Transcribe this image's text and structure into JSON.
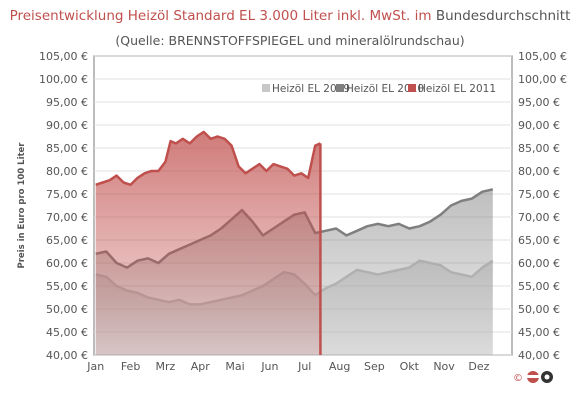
{
  "title_part1": "Preisentwicklung Heizöl Standard EL 3.000 Liter inkl. MwSt. im",
  "title_part2": "Bundesdurchschnitt",
  "subtitle": "(Quelle: BRENNSTOFFSPIEGEL  und mineralölrundschau)",
  "logo_copyright": "©",
  "colors": {
    "s2009": "#c8c8c8",
    "s2010": "#7f7f7f",
    "s2011": "#c0504d",
    "plot_bg": "#a6a6a6"
  },
  "chart_data": {
    "type": "area",
    "ylabel": "Preis in Euro pro 100 Liter",
    "xlabel": "",
    "ylim": [
      40,
      105
    ],
    "yticks": [
      "40,00 €",
      "45,00 €",
      "50,00 €",
      "55,00 €",
      "60,00 €",
      "65,00 €",
      "70,00 €",
      "75,00 €",
      "80,00 €",
      "85,00 €",
      "90,00 €",
      "95,00 €",
      "100,00 €",
      "105,00 €"
    ],
    "categories": [
      "Jan",
      "Feb",
      "Mrz",
      "Apr",
      "Mai",
      "Jun",
      "Jul",
      "Aug",
      "Sep",
      "Okt",
      "Nov",
      "Dez"
    ],
    "grid": true,
    "legend_position": "top-right",
    "series": [
      {
        "name": "Heizöl EL 2009",
        "x": [
          0,
          0.3,
          0.6,
          0.9,
          1.2,
          1.5,
          1.8,
          2.1,
          2.4,
          2.7,
          3.0,
          3.3,
          3.6,
          3.9,
          4.2,
          4.5,
          4.8,
          5.1,
          5.4,
          5.7,
          6.0,
          6.3,
          6.6,
          6.9,
          7.2,
          7.5,
          7.8,
          8.1,
          8.4,
          8.7,
          9.0,
          9.3,
          9.6,
          9.9,
          10.2,
          10.5,
          10.8,
          11.1,
          11.4
        ],
        "values": [
          57.5,
          57.0,
          55.0,
          54.0,
          53.5,
          52.5,
          52.0,
          51.5,
          52.0,
          51.0,
          51.0,
          51.5,
          52.0,
          52.5,
          53.0,
          54.0,
          55.0,
          56.5,
          58.0,
          57.5,
          55.5,
          53.0,
          54.5,
          55.5,
          57.0,
          58.5,
          58.0,
          57.5,
          58.0,
          58.5,
          59.0,
          60.5,
          60.0,
          59.5,
          58.0,
          57.5,
          57.0,
          59.0,
          60.5
        ]
      },
      {
        "name": "Heizöl EL 2010",
        "x": [
          0,
          0.3,
          0.6,
          0.9,
          1.2,
          1.5,
          1.8,
          2.1,
          2.4,
          2.7,
          3.0,
          3.3,
          3.6,
          3.9,
          4.2,
          4.5,
          4.8,
          5.1,
          5.4,
          5.7,
          6.0,
          6.3,
          6.6,
          6.9,
          7.2,
          7.5,
          7.8,
          8.1,
          8.4,
          8.7,
          9.0,
          9.3,
          9.6,
          9.9,
          10.2,
          10.5,
          10.8,
          11.1,
          11.4
        ],
        "values": [
          62.0,
          62.5,
          60.0,
          59.0,
          60.5,
          61.0,
          60.0,
          62.0,
          63.0,
          64.0,
          65.0,
          66.0,
          67.5,
          69.5,
          71.5,
          69.0,
          66.0,
          67.5,
          69.0,
          70.5,
          71.0,
          66.5,
          67.0,
          67.5,
          66.0,
          67.0,
          68.0,
          68.5,
          68.0,
          68.5,
          67.5,
          68.0,
          69.0,
          70.5,
          72.5,
          73.5,
          74.0,
          75.5,
          76.0
        ]
      },
      {
        "name": "Heizöl EL 2011",
        "x": [
          0,
          0.2,
          0.4,
          0.6,
          0.8,
          1.0,
          1.2,
          1.4,
          1.6,
          1.8,
          2.0,
          2.15,
          2.3,
          2.5,
          2.7,
          2.9,
          3.1,
          3.3,
          3.5,
          3.7,
          3.9,
          4.1,
          4.3,
          4.5,
          4.7,
          4.9,
          5.1,
          5.3,
          5.5,
          5.7,
          5.9,
          6.1,
          6.3,
          6.45
        ],
        "values": [
          77.0,
          77.5,
          78.0,
          79.0,
          77.5,
          77.0,
          78.5,
          79.5,
          80.0,
          80.0,
          82.0,
          86.5,
          86.0,
          87.0,
          86.0,
          87.5,
          88.5,
          87.0,
          87.5,
          87.0,
          85.5,
          81.0,
          79.5,
          80.5,
          81.5,
          80.0,
          81.5,
          81.0,
          80.5,
          79.0,
          79.5,
          78.5,
          85.5,
          86.0
        ]
      }
    ]
  }
}
